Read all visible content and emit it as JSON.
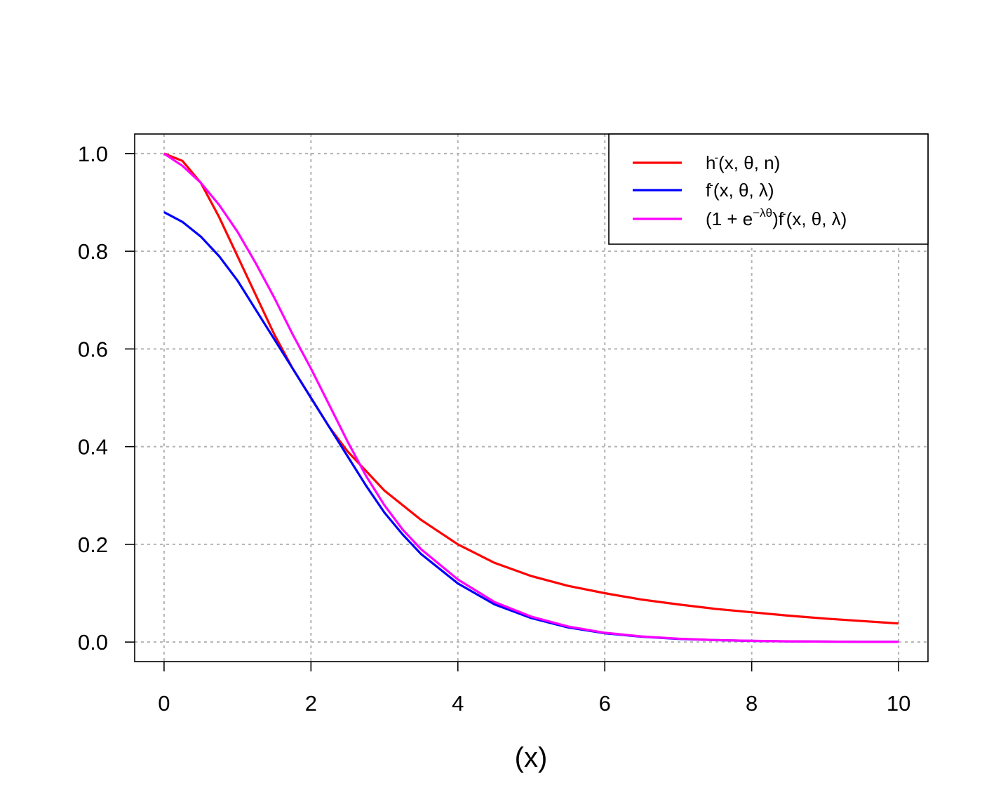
{
  "chart_data": {
    "type": "line",
    "title": "",
    "xlabel": "(x)",
    "ylabel": "",
    "xlim": [
      -0.4,
      10.4
    ],
    "ylim": [
      -0.04,
      1.04
    ],
    "x_ticks": [
      0,
      2,
      4,
      6,
      8,
      10
    ],
    "x_tick_labels": [
      "0",
      "2",
      "4",
      "6",
      "8",
      "10"
    ],
    "y_ticks": [
      0.0,
      0.2,
      0.4,
      0.6,
      0.8,
      1.0
    ],
    "y_tick_labels": [
      "0.0",
      "0.2",
      "0.4",
      "0.6",
      "0.8",
      "1.0"
    ],
    "grid": true,
    "legend_position": "top-right",
    "series": [
      {
        "legend_parts": [
          "h",
          "-",
          "(x, θ, n)"
        ],
        "color": "#ff0000",
        "x": [
          0,
          0.25,
          0.5,
          0.75,
          1,
          1.25,
          1.5,
          1.75,
          2,
          2.25,
          2.5,
          2.75,
          3,
          3.5,
          4,
          4.5,
          5,
          5.5,
          6,
          6.5,
          7,
          7.5,
          8,
          8.5,
          9,
          9.5,
          10
        ],
        "y": [
          1.0,
          0.985,
          0.94,
          0.87,
          0.79,
          0.71,
          0.63,
          0.56,
          0.5,
          0.44,
          0.39,
          0.35,
          0.31,
          0.25,
          0.2,
          0.162,
          0.135,
          0.115,
          0.1,
          0.087,
          0.077,
          0.068,
          0.061,
          0.054,
          0.048,
          0.043,
          0.038
        ]
      },
      {
        "legend_parts": [
          "f",
          "-",
          "(x, θ, λ)"
        ],
        "color": "#0000ff",
        "x": [
          0,
          0.25,
          0.5,
          0.75,
          1,
          1.25,
          1.5,
          1.75,
          2,
          2.25,
          2.5,
          2.75,
          3,
          3.25,
          3.5,
          4,
          4.5,
          5,
          5.5,
          6,
          6.5,
          7,
          7.5,
          8,
          8.5,
          9,
          9.5,
          10
        ],
        "y": [
          0.88,
          0.86,
          0.83,
          0.79,
          0.74,
          0.68,
          0.62,
          0.56,
          0.5,
          0.44,
          0.38,
          0.32,
          0.265,
          0.22,
          0.18,
          0.12,
          0.077,
          0.049,
          0.03,
          0.018,
          0.011,
          0.0066,
          0.004,
          0.0024,
          0.0014,
          0.0009,
          0.0005,
          0.0003
        ]
      },
      {
        "legend_parts": [
          "(1 + e",
          "−λθ",
          ")f",
          "-",
          "(x, θ, λ)"
        ],
        "color": "#ff00ff",
        "x": [
          0,
          0.25,
          0.5,
          0.75,
          1,
          1.25,
          1.5,
          1.75,
          2,
          2.25,
          2.5,
          2.75,
          3,
          3.25,
          3.5,
          4,
          4.5,
          5,
          5.5,
          6,
          6.5,
          7,
          7.5,
          8,
          8.5,
          9,
          9.5,
          10
        ],
        "y": [
          1.0,
          0.975,
          0.94,
          0.895,
          0.84,
          0.775,
          0.705,
          0.63,
          0.56,
          0.485,
          0.41,
          0.34,
          0.28,
          0.23,
          0.19,
          0.128,
          0.082,
          0.052,
          0.032,
          0.019,
          0.0115,
          0.0069,
          0.0041,
          0.0025,
          0.0015,
          0.0009,
          0.0005,
          0.0003
        ]
      }
    ]
  }
}
